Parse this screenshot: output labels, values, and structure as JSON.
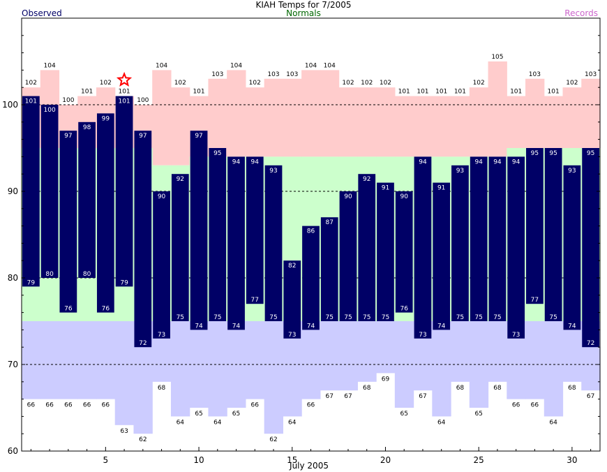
{
  "chart_data": {
    "type": "bar",
    "title": "KIAH Temps for 7/2005",
    "xlabel": "July 2005",
    "legend": {
      "observed": "Observed",
      "normals": "Normals",
      "records": "Records"
    },
    "colors": {
      "observed": "#000066",
      "normals": "#ccffcc",
      "record_high": "#ffcccc",
      "record_low": "#ccccff",
      "star": "#ff0000",
      "legend_observed": "#000066",
      "legend_normals": "#006600",
      "legend_records": "#cc66cc"
    },
    "ylim": [
      60,
      110
    ],
    "yticks": [
      60,
      70,
      80,
      90,
      100
    ],
    "gridlines": [
      70,
      80,
      90,
      100
    ],
    "xticks": [
      5,
      10,
      15,
      20,
      25,
      30
    ],
    "days": [
      1,
      2,
      3,
      4,
      5,
      6,
      7,
      8,
      9,
      10,
      11,
      12,
      13,
      14,
      15,
      16,
      17,
      18,
      19,
      20,
      21,
      22,
      23,
      24,
      25,
      26,
      27,
      28,
      29,
      30,
      31
    ],
    "obs_high": [
      101,
      100,
      97,
      98,
      99,
      101,
      97,
      90,
      92,
      97,
      95,
      94,
      94,
      93,
      82,
      86,
      87,
      90,
      92,
      91,
      90,
      94,
      91,
      93,
      94,
      94,
      94,
      95,
      95,
      93,
      95
    ],
    "obs_low": [
      79,
      80,
      76,
      80,
      76,
      79,
      72,
      73,
      75,
      74,
      75,
      74,
      77,
      75,
      73,
      74,
      75,
      75,
      75,
      75,
      76,
      73,
      74,
      75,
      75,
      75,
      73,
      77,
      75,
      74,
      72
    ],
    "normal_high": [
      95,
      95,
      95,
      95,
      95,
      95,
      95,
      93,
      93,
      94,
      94,
      94,
      94,
      94,
      94,
      94,
      94,
      94,
      94,
      94,
      94,
      94,
      94,
      94,
      94,
      94,
      95,
      95,
      95,
      95,
      95
    ],
    "normal_low": [
      75,
      75,
      75,
      75,
      75,
      75,
      75,
      75,
      75,
      75,
      75,
      75,
      75,
      75,
      75,
      75,
      75,
      75,
      75,
      75,
      75,
      75,
      75,
      75,
      75,
      75,
      75,
      75,
      75,
      75,
      75
    ],
    "record_high": [
      102,
      104,
      100,
      101,
      102,
      101,
      100,
      104,
      102,
      101,
      103,
      104,
      102,
      103,
      103,
      104,
      104,
      102,
      102,
      102,
      101,
      101,
      101,
      101,
      102,
      105,
      101,
      103,
      101,
      102,
      103
    ],
    "record_low": [
      66,
      66,
      66,
      66,
      66,
      63,
      62,
      68,
      64,
      65,
      64,
      65,
      66,
      62,
      64,
      66,
      67,
      67,
      68,
      69,
      65,
      67,
      64,
      68,
      65,
      68,
      66,
      66,
      64,
      68,
      67
    ],
    "record_set_days": [
      6
    ]
  }
}
